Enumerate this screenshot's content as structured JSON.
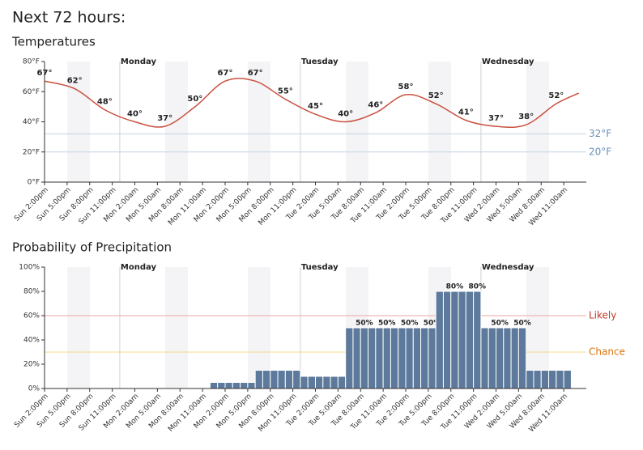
{
  "page_title": "Next 72 hours:",
  "chart_data": [
    {
      "type": "line",
      "title": "Temperatures",
      "color": "#c9503f",
      "x": [
        0,
        4,
        8,
        12,
        16,
        20,
        24,
        28,
        32,
        36,
        40,
        44,
        48,
        52,
        56,
        60,
        64,
        68,
        71
      ],
      "values": [
        67,
        62,
        48,
        40,
        37,
        50,
        67,
        67,
        55,
        45,
        40,
        46,
        58,
        52,
        41,
        37,
        38,
        52,
        59
      ],
      "value_labels": [
        "67°",
        "62°",
        "48°",
        "40°",
        "37°",
        "50°",
        "67°",
        "67°",
        "55°",
        "45°",
        "40°",
        "46°",
        "58°",
        "52°",
        "41°",
        "37°",
        "38°",
        "52°",
        null
      ],
      "xlim": [
        0,
        72
      ],
      "xticks": [
        {
          "value": 0,
          "label": "Sun 2:00pm"
        },
        {
          "value": 3,
          "label": "Sun 5:00pm"
        },
        {
          "value": 6,
          "label": "Sun 8:00pm"
        },
        {
          "value": 9,
          "label": "Sun 11:00pm"
        },
        {
          "value": 12,
          "label": "Mon 2:00am"
        },
        {
          "value": 15,
          "label": "Mon 5:00am"
        },
        {
          "value": 18,
          "label": "Mon 8:00am"
        },
        {
          "value": 21,
          "label": "Mon 11:00am"
        },
        {
          "value": 24,
          "label": "Mon 2:00pm"
        },
        {
          "value": 27,
          "label": "Mon 5:00pm"
        },
        {
          "value": 30,
          "label": "Mon 8:00pm"
        },
        {
          "value": 33,
          "label": "Mon 11:00pm"
        },
        {
          "value": 36,
          "label": "Tue 2:00am"
        },
        {
          "value": 39,
          "label": "Tue 5:00am"
        },
        {
          "value": 42,
          "label": "Tue 8:00am"
        },
        {
          "value": 45,
          "label": "Tue 11:00am"
        },
        {
          "value": 48,
          "label": "Tue 2:00pm"
        },
        {
          "value": 51,
          "label": "Tue 5:00pm"
        },
        {
          "value": 54,
          "label": "Tue 8:00pm"
        },
        {
          "value": 57,
          "label": "Tue 11:00pm"
        },
        {
          "value": 60,
          "label": "Wed 2:00am"
        },
        {
          "value": 63,
          "label": "Wed 5:00am"
        },
        {
          "value": 66,
          "label": "Wed 8:00am"
        },
        {
          "value": 69,
          "label": "Wed 11:00am"
        }
      ],
      "ylim": [
        0,
        80
      ],
      "yticks": [
        {
          "value": 0,
          "label": "0°F"
        },
        {
          "value": 20,
          "label": "20°F"
        },
        {
          "value": 40,
          "label": "40°F"
        },
        {
          "value": 60,
          "label": "60°F"
        },
        {
          "value": 80,
          "label": "80°F"
        }
      ],
      "day_markers": [
        {
          "value": 10,
          "label": "Monday"
        },
        {
          "value": 34,
          "label": "Tuesday"
        },
        {
          "value": 58,
          "label": "Wednesday"
        }
      ],
      "reference_lines": [
        {
          "value": 32,
          "label": "32°F",
          "color": "#6d8fb5"
        },
        {
          "value": 20,
          "label": "20°F",
          "color": "#6d8fb5"
        }
      ]
    },
    {
      "type": "bar",
      "title": "Probability of Precipitation",
      "color": "#5d7a9c",
      "x": [
        0,
        1,
        2,
        3,
        4,
        5,
        6,
        7,
        8,
        9,
        10,
        11,
        12,
        13,
        14,
        15,
        16,
        17,
        18,
        19,
        20,
        21,
        22,
        23,
        24,
        25,
        26,
        27,
        28,
        29,
        30,
        31,
        32,
        33,
        34,
        35,
        36,
        37,
        38,
        39,
        40,
        41,
        42,
        43,
        44,
        45,
        46,
        47,
        48,
        49,
        50,
        51,
        52,
        53,
        54,
        55,
        56,
        57,
        58,
        59,
        60,
        61,
        62,
        63,
        64,
        65,
        66,
        67,
        68,
        69
      ],
      "values": [
        0,
        0,
        0,
        0,
        0,
        0,
        0,
        0,
        0,
        0,
        0,
        0,
        0,
        0,
        0,
        0,
        0,
        0,
        0,
        0,
        0,
        0,
        5,
        5,
        5,
        5,
        5,
        5,
        15,
        15,
        15,
        15,
        15,
        15,
        10,
        10,
        10,
        10,
        10,
        10,
        50,
        50,
        50,
        50,
        50,
        50,
        50,
        50,
        50,
        50,
        50,
        50,
        80,
        80,
        80,
        80,
        80,
        80,
        50,
        50,
        50,
        50,
        50,
        50,
        15,
        15,
        15,
        15,
        15,
        15
      ],
      "value_labels": [
        null,
        null,
        null,
        null,
        null,
        null,
        null,
        null,
        null,
        null,
        null,
        null,
        null,
        null,
        null,
        null,
        null,
        null,
        null,
        null,
        null,
        null,
        null,
        null,
        null,
        null,
        null,
        null,
        null,
        null,
        null,
        null,
        null,
        null,
        null,
        null,
        null,
        null,
        null,
        null,
        null,
        null,
        "50%",
        null,
        null,
        "50%",
        null,
        null,
        "50%",
        null,
        null,
        "50%",
        null,
        null,
        "80%",
        null,
        null,
        "80%",
        null,
        null,
        "50%",
        null,
        null,
        "50%",
        null,
        null,
        null,
        null,
        null,
        null
      ],
      "xlim": [
        0,
        72
      ],
      "xticks": [
        {
          "value": 0,
          "label": "Sun 2:00pm"
        },
        {
          "value": 3,
          "label": "Sun 5:00pm"
        },
        {
          "value": 6,
          "label": "Sun 8:00pm"
        },
        {
          "value": 9,
          "label": "Sun 11:00pm"
        },
        {
          "value": 12,
          "label": "Mon 2:00am"
        },
        {
          "value": 15,
          "label": "Mon 5:00am"
        },
        {
          "value": 18,
          "label": "Mon 8:00am"
        },
        {
          "value": 21,
          "label": "Mon 11:00am"
        },
        {
          "value": 24,
          "label": "Mon 2:00pm"
        },
        {
          "value": 27,
          "label": "Mon 5:00pm"
        },
        {
          "value": 30,
          "label": "Mon 8:00pm"
        },
        {
          "value": 33,
          "label": "Mon 11:00pm"
        },
        {
          "value": 36,
          "label": "Tue 2:00am"
        },
        {
          "value": 39,
          "label": "Tue 5:00am"
        },
        {
          "value": 42,
          "label": "Tue 8:00am"
        },
        {
          "value": 45,
          "label": "Tue 11:00am"
        },
        {
          "value": 48,
          "label": "Tue 2:00pm"
        },
        {
          "value": 51,
          "label": "Tue 5:00pm"
        },
        {
          "value": 54,
          "label": "Tue 8:00pm"
        },
        {
          "value": 57,
          "label": "Tue 11:00pm"
        },
        {
          "value": 60,
          "label": "Wed 2:00am"
        },
        {
          "value": 63,
          "label": "Wed 5:00am"
        },
        {
          "value": 66,
          "label": "Wed 8:00am"
        },
        {
          "value": 69,
          "label": "Wed 11:00am"
        }
      ],
      "ylim": [
        0,
        100
      ],
      "yticks": [
        {
          "value": 0,
          "label": "0%"
        },
        {
          "value": 20,
          "label": "20%"
        },
        {
          "value": 40,
          "label": "40%"
        },
        {
          "value": 60,
          "label": "60%"
        },
        {
          "value": 80,
          "label": "80%"
        },
        {
          "value": 100,
          "label": "100%"
        }
      ],
      "day_markers": [
        {
          "value": 10,
          "label": "Monday"
        },
        {
          "value": 34,
          "label": "Tuesday"
        },
        {
          "value": 58,
          "label": "Wednesday"
        }
      ],
      "reference_lines": [
        {
          "value": 60,
          "label": "Likely",
          "color": "#c0392b",
          "line_color": "#f2a6a6"
        },
        {
          "value": 30,
          "label": "Chance",
          "color": "#d9730d",
          "line_color": "#f5d98a"
        }
      ]
    }
  ]
}
